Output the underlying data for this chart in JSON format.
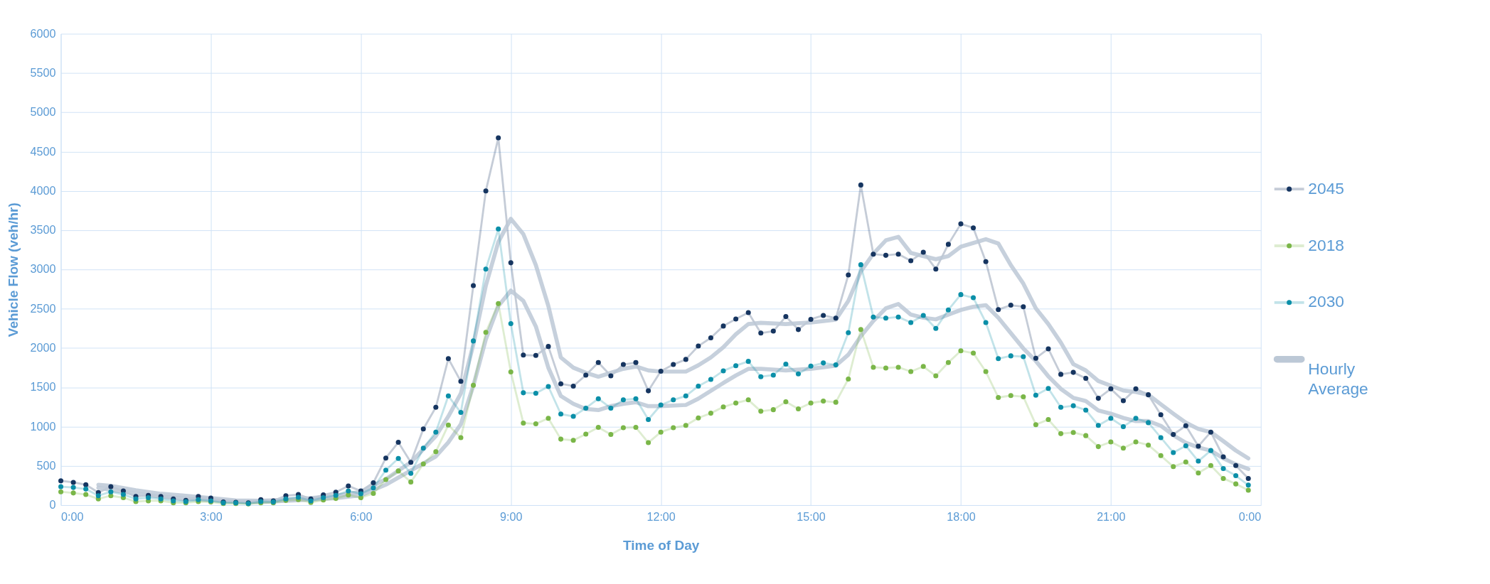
{
  "chart_data": {
    "type": "line",
    "xlabel": "Time of Day",
    "ylabel": "Vehicle Flow (veh/hr)",
    "xlim": [
      0,
      24
    ],
    "ylim": [
      0,
      6000
    ],
    "xticks": [
      {
        "value": 0,
        "label": "0:00"
      },
      {
        "value": 3,
        "label": "3:00"
      },
      {
        "value": 6,
        "label": "6:00"
      },
      {
        "value": 9,
        "label": "9:00"
      },
      {
        "value": 12,
        "label": "12:00"
      },
      {
        "value": 15,
        "label": "15:00"
      },
      {
        "value": 18,
        "label": "18:00"
      },
      {
        "value": 21,
        "label": "21:00"
      },
      {
        "value": 24,
        "label": "0:00"
      }
    ],
    "yticks": [
      0,
      500,
      1000,
      1500,
      2000,
      2500,
      3000,
      3500,
      4000,
      4500,
      5000,
      5500,
      6000
    ],
    "grid": true,
    "legend": "right",
    "marker": "circle",
    "x": [
      0,
      0.25,
      0.5,
      0.75,
      1,
      1.25,
      1.5,
      1.75,
      2,
      2.25,
      2.5,
      2.75,
      3,
      3.25,
      3.5,
      3.75,
      4,
      4.25,
      4.5,
      4.75,
      5,
      5.25,
      5.5,
      5.75,
      6,
      6.25,
      6.5,
      6.75,
      7,
      7.25,
      7.5,
      7.75,
      8,
      8.25,
      8.5,
      8.75,
      9,
      9.25,
      9.5,
      9.75,
      10,
      10.25,
      10.5,
      10.75,
      11,
      11.25,
      11.5,
      11.75,
      12,
      12.25,
      12.5,
      12.75,
      13,
      13.25,
      13.5,
      13.75,
      14,
      14.25,
      14.5,
      14.75,
      15,
      15.25,
      15.5,
      15.75,
      16,
      16.25,
      16.5,
      16.75,
      17,
      17.25,
      17.5,
      17.75,
      18,
      18.25,
      18.5,
      18.75,
      19,
      19.25,
      19.5,
      19.75,
      20,
      20.25,
      20.5,
      20.75,
      21,
      21.25,
      21.5,
      21.75,
      22,
      22.25,
      22.5,
      22.75,
      23,
      23.25,
      23.5,
      23.75
    ],
    "series": [
      {
        "name": "2045",
        "color": "#163560",
        "values": [
          310,
          290,
          260,
          160,
          235,
          180,
          110,
          125,
          110,
          80,
          60,
          110,
          90,
          40,
          35,
          30,
          70,
          55,
          120,
          135,
          80,
          130,
          165,
          245,
          180,
          285,
          600,
          800,
          545,
          970,
          1245,
          1865,
          1575,
          2795,
          4000,
          4675,
          3085,
          1910,
          1905,
          2020,
          1545,
          1515,
          1655,
          1815,
          1645,
          1790,
          1815,
          1455,
          1705,
          1790,
          1855,
          2025,
          2130,
          2280,
          2370,
          2450,
          2190,
          2215,
          2400,
          2235,
          2365,
          2415,
          2380,
          2930,
          4075,
          3195,
          3180,
          3195,
          3110,
          3220,
          3005,
          3320,
          3580,
          3530,
          3100,
          2490,
          2545,
          2525,
          1870,
          1990,
          1665,
          1690,
          1615,
          1360,
          1480,
          1330,
          1480,
          1405,
          1150,
          900,
          1010,
          750,
          930,
          615,
          505,
          340
        ]
      },
      {
        "name": "2018",
        "color": "#7ab648",
        "values": [
          170,
          155,
          135,
          80,
          120,
          95,
          45,
          55,
          55,
          30,
          30,
          45,
          40,
          20,
          20,
          15,
          30,
          30,
          60,
          70,
          35,
          65,
          85,
          130,
          95,
          150,
          325,
          435,
          295,
          525,
          680,
          1020,
          860,
          1525,
          2200,
          2565,
          1695,
          1045,
          1035,
          1105,
          840,
          825,
          905,
          990,
          900,
          985,
          990,
          795,
          930,
          985,
          1015,
          1110,
          1170,
          1250,
          1300,
          1340,
          1195,
          1215,
          1315,
          1225,
          1300,
          1325,
          1310,
          1605,
          2235,
          1755,
          1745,
          1755,
          1700,
          1765,
          1645,
          1815,
          1965,
          1935,
          1700,
          1370,
          1395,
          1380,
          1025,
          1090,
          910,
          925,
          885,
          745,
          805,
          725,
          805,
          765,
          630,
          490,
          550,
          410,
          505,
          340,
          270,
          190
        ]
      },
      {
        "name": "2030",
        "color": "#0b8fa8",
        "values": [
          235,
          225,
          205,
          120,
          170,
          135,
          80,
          95,
          80,
          55,
          45,
          70,
          55,
          30,
          30,
          20,
          45,
          40,
          80,
          100,
          55,
          95,
          125,
          180,
          145,
          220,
          445,
          595,
          405,
          725,
          930,
          1390,
          1180,
          2090,
          3005,
          3515,
          2310,
          1430,
          1425,
          1510,
          1160,
          1130,
          1235,
          1355,
          1235,
          1340,
          1355,
          1090,
          1275,
          1340,
          1390,
          1515,
          1600,
          1710,
          1775,
          1830,
          1635,
          1655,
          1795,
          1670,
          1770,
          1810,
          1785,
          2195,
          3060,
          2395,
          2380,
          2395,
          2325,
          2415,
          2250,
          2485,
          2680,
          2640,
          2325,
          1865,
          1900,
          1890,
          1400,
          1485,
          1245,
          1265,
          1210,
          1015,
          1105,
          1000,
          1105,
          1050,
          860,
          670,
          755,
          560,
          695,
          465,
          375,
          255
        ]
      },
      {
        "name": "Hourly Average",
        "color": "#bcc8d6",
        "marker": "none",
        "x": [
          0.75,
          1,
          1.5,
          2,
          2.5,
          3,
          3.5,
          4,
          4.5,
          5,
          5.5,
          6,
          6.5,
          7,
          7.5,
          7.75,
          8,
          8.25,
          8.5,
          8.75,
          9,
          9.25,
          9.5,
          9.75,
          10,
          10.25,
          10.5,
          10.75,
          11,
          11.25,
          11.5,
          11.75,
          12,
          12.5,
          12.75,
          13,
          13.25,
          13.5,
          13.75,
          14,
          14.5,
          15,
          15.5,
          15.75,
          16,
          16.25,
          16.5,
          16.75,
          17,
          17.5,
          17.75,
          18,
          18.5,
          18.75,
          19,
          19.25,
          19.5,
          19.75,
          20,
          20.25,
          20.5,
          20.75,
          21,
          21.25,
          21.5,
          21.75,
          22,
          22.25,
          22.5,
          22.75,
          23,
          23.25,
          23.5,
          23.75
        ],
        "values": [
          260,
          245,
          190,
          145,
          120,
          90,
          60,
          55,
          70,
          90,
          120,
          170,
          330,
          545,
          880,
          1130,
          1420,
          2045,
          2795,
          3350,
          3645,
          3450,
          3055,
          2535,
          1880,
          1750,
          1685,
          1635,
          1685,
          1735,
          1765,
          1715,
          1700,
          1700,
          1780,
          1880,
          2010,
          2175,
          2305,
          2320,
          2305,
          2325,
          2360,
          2600,
          2975,
          3200,
          3370,
          3415,
          3210,
          3130,
          3170,
          3290,
          3385,
          3330,
          3055,
          2820,
          2505,
          2305,
          2070,
          1795,
          1715,
          1580,
          1520,
          1460,
          1440,
          1405,
          1285,
          1165,
          1050,
          970,
          930,
          815,
          695,
          595
        ]
      },
      {
        "color": "#bcc8d6",
        "marker": "none",
        "x": [
          0.75,
          1,
          1.5,
          2,
          2.5,
          3,
          3.5,
          4,
          4.5,
          5,
          5.5,
          6,
          6.5,
          7,
          7.5,
          7.75,
          8,
          8.25,
          8.5,
          8.75,
          9,
          9.25,
          9.5,
          9.75,
          10,
          10.25,
          10.5,
          10.75,
          11,
          11.25,
          11.5,
          11.75,
          12,
          12.5,
          12.75,
          13,
          13.25,
          13.5,
          13.75,
          14,
          14.5,
          15,
          15.5,
          15.75,
          16,
          16.25,
          16.5,
          16.75,
          17,
          17.25,
          17.5,
          17.75,
          18,
          18.25,
          18.5,
          18.75,
          19,
          19.25,
          19.5,
          19.75,
          20,
          20.25,
          20.5,
          20.75,
          21,
          21.25,
          21.5,
          21.75,
          22,
          22.25,
          22.5,
          22.75,
          23,
          23.25,
          23.5,
          23.75
        ],
        "values": [
          220,
          195,
          145,
          110,
          80,
          65,
          45,
          40,
          55,
          70,
          90,
          125,
          260,
          440,
          620,
          800,
          1030,
          1520,
          2110,
          2535,
          2730,
          2600,
          2275,
          1750,
          1390,
          1290,
          1225,
          1210,
          1260,
          1290,
          1310,
          1260,
          1260,
          1275,
          1355,
          1455,
          1555,
          1650,
          1735,
          1735,
          1715,
          1735,
          1775,
          1915,
          2150,
          2345,
          2505,
          2560,
          2425,
          2385,
          2365,
          2425,
          2485,
          2525,
          2545,
          2385,
          2190,
          1995,
          1835,
          1640,
          1480,
          1365,
          1325,
          1205,
          1165,
          1110,
          1070,
          1070,
          1010,
          890,
          795,
          735,
          695,
          595,
          520,
          460
        ]
      }
    ]
  }
}
